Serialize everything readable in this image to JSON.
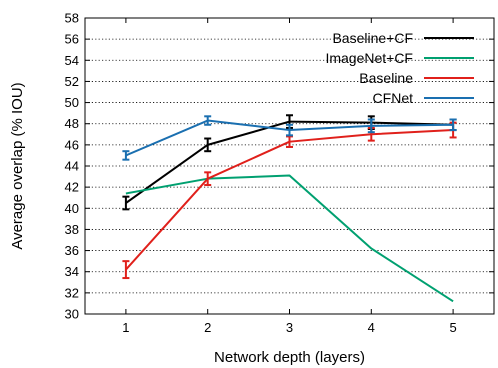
{
  "chart_data": {
    "type": "line",
    "xlabel": "Network depth (layers)",
    "ylabel": "Average overlap (% IOU)",
    "x": [
      1,
      2,
      3,
      4,
      5
    ],
    "xlim": [
      0.5,
      5.5
    ],
    "ylim": [
      30,
      58
    ],
    "yticks": [
      30,
      32,
      34,
      36,
      38,
      40,
      42,
      44,
      46,
      48,
      50,
      52,
      54,
      56,
      58
    ],
    "grid": "dotted horizontal",
    "legend_position": "top-right",
    "series": [
      {
        "name": "Baseline+CF",
        "color": "#000000",
        "values": [
          40.5,
          46.0,
          48.2,
          48.1,
          47.9
        ],
        "error": [
          0.6,
          0.6,
          0.6,
          0.6,
          0.5
        ]
      },
      {
        "name": "ImageNet+CF",
        "color": "#00a070",
        "values": [
          41.4,
          42.8,
          43.1,
          36.2,
          31.2
        ],
        "error": null
      },
      {
        "name": "Baseline",
        "color": "#e0201b",
        "values": [
          34.2,
          42.8,
          46.3,
          47.0,
          47.4
        ],
        "error": [
          0.8,
          0.6,
          0.5,
          0.6,
          0.7
        ]
      },
      {
        "name": "CFNet",
        "color": "#1a6fb0",
        "values": [
          45.0,
          48.3,
          47.4,
          47.8,
          47.9
        ],
        "error": [
          0.4,
          0.4,
          0.5,
          0.6,
          0.5
        ]
      }
    ]
  }
}
